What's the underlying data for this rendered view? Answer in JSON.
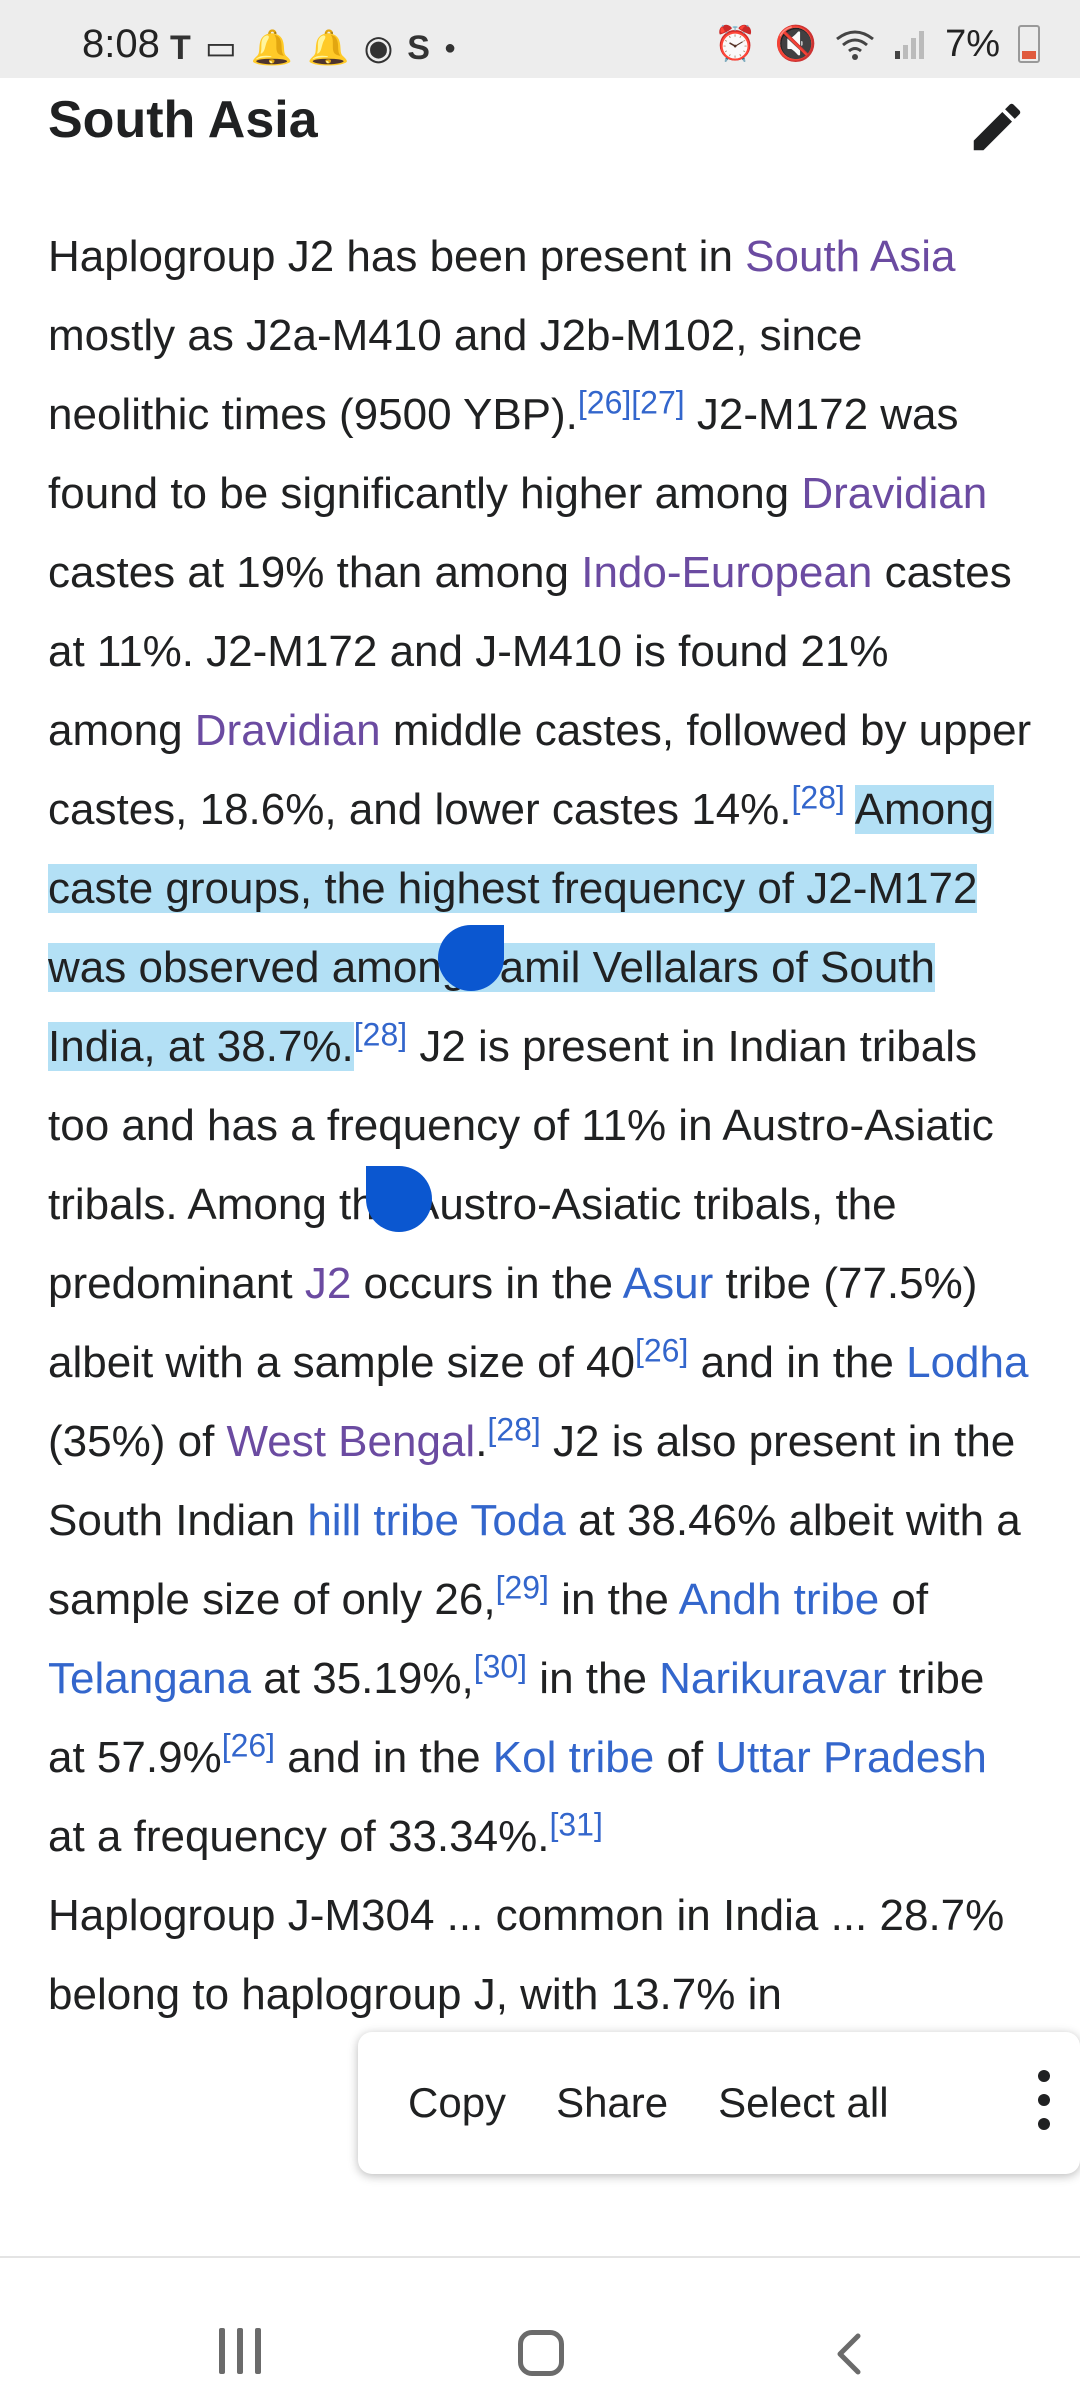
{
  "status_bar": {
    "time": "8:08",
    "battery_percent": "7%",
    "left_icons": [
      "t-mobile-icon",
      "voicemail-icon",
      "notification-icon",
      "notification-icon",
      "chrome-icon",
      "s-icon",
      "dot-icon"
    ],
    "right_icons": [
      "alarm-icon",
      "mute-icon",
      "wifi-icon",
      "signal-icon",
      "battery-low-icon"
    ]
  },
  "section": {
    "heading": "South Asia",
    "edit_icon": "pencil-icon"
  },
  "article": {
    "p1_a": "Haplogroup J2 has been present in ",
    "link_south_asia": "South Asia",
    "p1_b": " mostly as J2a-M410 and J2b-M102, since neolithic times (9500 YBP).",
    "ref_26": "[26]",
    "ref_27": "[27]",
    "p1_c": " J2-M172 was found to be significantly higher among ",
    "link_dravidian": "Dravidian",
    "p1_d": " castes at 19% than among ",
    "link_indo_european": "Indo-European",
    "p1_e": " castes at 11%. J2-M172 and J-M410 is found 21% among ",
    "p1_f": " middle castes, followed by upper castes, 18.6%, and lower castes 14%.",
    "ref_28": "[28]",
    "selected_text": "Among caste groups, the highest frequency of J2-M172 was observed among Tamil Vellalars of South India, at 38.7%.",
    "p1_g": " J2 is present in Indian tribals too and has a frequency of 11% in Austro-Asiatic tribals. Among the Austro-Asiatic tribals, the predominant ",
    "link_j2": "J2",
    "p1_h": " occurs in the ",
    "link_asur": "Asur",
    "p1_i": " tribe (77.5%) albeit with a sample size of 40",
    "p1_j": " and in the ",
    "link_lodha": "Lodha",
    "p1_k": " (35%) of ",
    "link_west_bengal": "West Bengal",
    "p1_l": ".",
    "p1_m": " J2 is also present in the South Indian ",
    "link_hill_tribe": "hill tribe",
    "p1_sp": " ",
    "link_toda": "Toda",
    "p1_n": " at 38.46% albeit with a sample size of only 26,",
    "ref_29": "[29]",
    "p1_o": " in the ",
    "link_andh": "Andh tribe",
    "p1_p": " of ",
    "link_telangana": "Telangana",
    "p1_q": " at 35.19%,",
    "ref_30": "[30]",
    "p1_r": " in the ",
    "link_narikuravar": "Narikuravar",
    "p1_s": " tribe at 57.9%",
    "p1_t": " and in the ",
    "link_kol": "Kol tribe",
    "p1_u": " of ",
    "link_uttar_pradesh": "Uttar Pradesh",
    "p1_v": " at a frequency of 33.34%.",
    "ref_31": "[31]",
    "p2": "Haplogroup J-M304 ... common in India ... 28.7% belong to haplogroup J, with 13.7% in"
  },
  "context_menu": {
    "copy": "Copy",
    "share": "Share",
    "select_all": "Select all",
    "more_icon": "more-vertical-icon"
  },
  "nav_bar": {
    "recents_icon": "recents-icon",
    "home_icon": "home-icon",
    "back_icon": "back-icon"
  },
  "colors": {
    "link": "#3366cc",
    "visited_link": "#6b4ba1",
    "selection": "#b3e0f5",
    "handle": "#0b57d0"
  }
}
